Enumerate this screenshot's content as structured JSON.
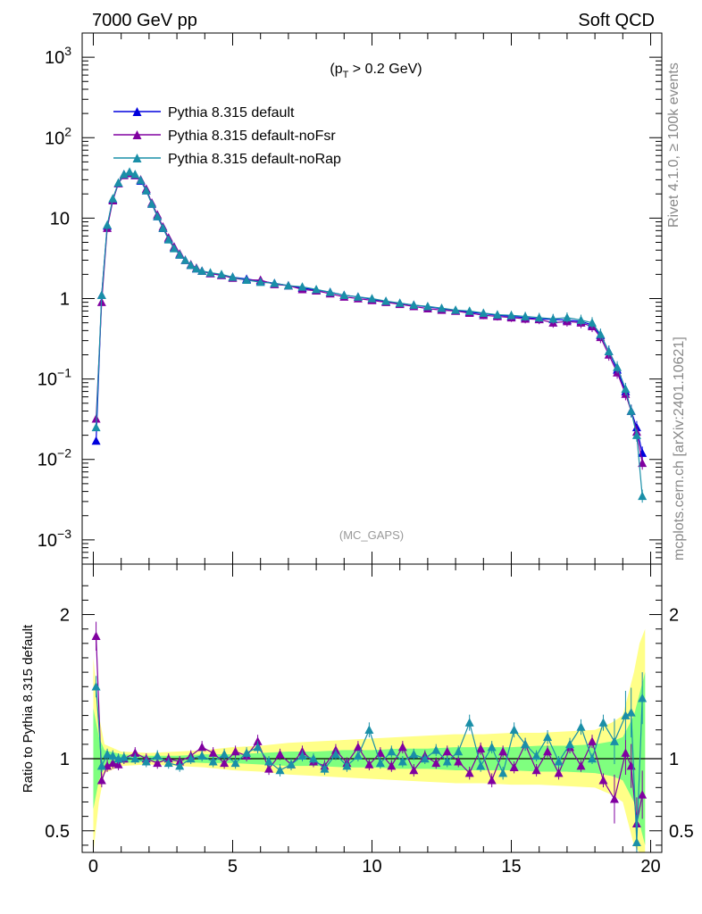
{
  "header": {
    "left": "7000 GeV pp",
    "right": "Soft QCD"
  },
  "side_labels": {
    "rivet": "Rivet 4.1.0, ≥ 100k events",
    "mcplots": "mcplots.cern.ch [arXiv:2401.10621]"
  },
  "chart_data": [
    {
      "type": "line",
      "panel": "main",
      "title": "(p_T > 0.2 GeV)",
      "title_text": "(p",
      "title_sub": "T",
      "title_rest": " > 0.2 GeV)",
      "watermark": "(MC_GAPS)",
      "xlabel": "",
      "ylabel": "",
      "y_scale": "log",
      "xlim": [
        -0.4,
        20.4
      ],
      "ylim": [
        0.0005,
        2000
      ],
      "y_ticks": [
        {
          "value": 1000,
          "label": "10",
          "exp": "3"
        },
        {
          "value": 100,
          "label": "10",
          "exp": "2"
        },
        {
          "value": 10,
          "label": "10",
          "exp": ""
        },
        {
          "value": 1,
          "label": "1",
          "exp": ""
        },
        {
          "value": 0.1,
          "label": "10",
          "exp": "−1"
        },
        {
          "value": 0.01,
          "label": "10",
          "exp": "−2"
        },
        {
          "value": 0.001,
          "label": "10",
          "exp": "−3"
        }
      ],
      "legend_position": "top-left",
      "series": [
        {
          "name": "Pythia 8.315 default",
          "color": "#0000dd",
          "x": [
            0.1,
            0.3,
            0.5,
            0.7,
            0.9,
            1.1,
            1.3,
            1.5,
            1.7,
            1.9,
            2.1,
            2.3,
            2.5,
            2.7,
            2.9,
            3.1,
            3.3,
            3.5,
            3.7,
            3.9,
            4.2,
            4.6,
            5.0,
            5.5,
            6.0,
            6.5,
            7.0,
            7.5,
            8.0,
            8.5,
            9.0,
            9.5,
            10.0,
            10.5,
            11.0,
            11.5,
            12.0,
            12.5,
            13.0,
            13.5,
            14.0,
            14.5,
            15.0,
            15.5,
            16.0,
            16.5,
            17.0,
            17.5,
            17.9,
            18.2,
            18.5,
            18.8,
            19.1,
            19.3,
            19.5,
            19.7
          ],
          "y": [
            0.017,
            1.1,
            8.0,
            17.0,
            27.0,
            35.0,
            37.0,
            34.0,
            29.0,
            22.0,
            15.0,
            10.5,
            7.5,
            5.5,
            4.3,
            3.5,
            3.0,
            2.6,
            2.35,
            2.2,
            2.05,
            1.95,
            1.85,
            1.75,
            1.65,
            1.55,
            1.45,
            1.35,
            1.28,
            1.2,
            1.1,
            1.05,
            0.98,
            0.92,
            0.87,
            0.83,
            0.79,
            0.75,
            0.71,
            0.68,
            0.65,
            0.62,
            0.6,
            0.58,
            0.56,
            0.55,
            0.54,
            0.52,
            0.47,
            0.35,
            0.22,
            0.13,
            0.07,
            0.04,
            0.025,
            0.012
          ]
        },
        {
          "name": "Pythia 8.315 default-noFsr",
          "color": "#8000a0",
          "x": [
            0.1,
            0.3,
            0.5,
            0.7,
            0.9,
            1.1,
            1.3,
            1.5,
            1.7,
            1.9,
            2.1,
            2.3,
            2.5,
            2.7,
            2.9,
            3.1,
            3.3,
            3.5,
            3.7,
            3.9,
            4.2,
            4.6,
            5.0,
            5.5,
            6.0,
            6.5,
            7.0,
            7.5,
            8.0,
            8.5,
            9.0,
            9.5,
            10.0,
            10.5,
            11.0,
            11.5,
            12.0,
            12.5,
            13.0,
            13.5,
            14.0,
            14.5,
            15.0,
            15.5,
            16.0,
            16.5,
            17.0,
            17.5,
            17.9,
            18.2,
            18.5,
            18.8,
            19.1,
            19.3,
            19.5,
            19.7
          ],
          "y": [
            0.032,
            0.9,
            7.5,
            16.5,
            27.0,
            34.0,
            36.0,
            34.0,
            30.0,
            23.0,
            15.5,
            11.0,
            7.8,
            5.7,
            4.4,
            3.6,
            3.0,
            2.65,
            2.4,
            2.2,
            2.05,
            1.95,
            1.8,
            1.7,
            1.7,
            1.5,
            1.45,
            1.3,
            1.25,
            1.15,
            1.05,
            1.0,
            0.95,
            0.9,
            0.85,
            0.8,
            0.75,
            0.72,
            0.7,
            0.66,
            0.62,
            0.6,
            0.58,
            0.56,
            0.55,
            0.5,
            0.52,
            0.5,
            0.45,
            0.33,
            0.2,
            0.12,
            0.065,
            0.04,
            0.022,
            0.009
          ]
        },
        {
          "name": "Pythia 8.315 default-noRap",
          "color": "#1a8fa8",
          "x": [
            0.1,
            0.3,
            0.5,
            0.7,
            0.9,
            1.1,
            1.3,
            1.5,
            1.7,
            1.9,
            2.1,
            2.3,
            2.5,
            2.7,
            2.9,
            3.1,
            3.3,
            3.5,
            3.7,
            3.9,
            4.2,
            4.6,
            5.0,
            5.5,
            6.0,
            6.5,
            7.0,
            7.5,
            8.0,
            8.5,
            9.0,
            9.5,
            10.0,
            10.5,
            11.0,
            11.5,
            12.0,
            12.5,
            13.0,
            13.5,
            14.0,
            14.5,
            15.0,
            15.5,
            16.0,
            16.5,
            17.0,
            17.5,
            17.9,
            18.2,
            18.5,
            18.8,
            19.1,
            19.3,
            19.5,
            19.7
          ],
          "y": [
            0.025,
            1.1,
            8.2,
            17.5,
            27.5,
            35.0,
            37.5,
            35.0,
            29.5,
            22.0,
            15.0,
            10.5,
            7.5,
            5.4,
            4.2,
            3.5,
            3.0,
            2.6,
            2.35,
            2.2,
            2.1,
            2.0,
            1.85,
            1.7,
            1.6,
            1.55,
            1.45,
            1.4,
            1.3,
            1.2,
            1.1,
            1.05,
            1.0,
            0.93,
            0.88,
            0.83,
            0.8,
            0.76,
            0.72,
            0.7,
            0.66,
            0.63,
            0.62,
            0.6,
            0.58,
            0.56,
            0.58,
            0.54,
            0.5,
            0.36,
            0.22,
            0.14,
            0.075,
            0.04,
            0.02,
            0.0035
          ]
        }
      ]
    },
    {
      "type": "line",
      "panel": "ratio",
      "ylabel": "Ratio to Pythia 8.315 default",
      "xlabel": "",
      "xlim": [
        -0.4,
        20.4
      ],
      "ylim": [
        0.35,
        2.35
      ],
      "y_ticks": [
        0.5,
        1,
        2
      ],
      "x_ticks": [
        0,
        5,
        10,
        15,
        20
      ],
      "reference_line": 1,
      "band_colors": {
        "inner": "#7fff7f",
        "outer": "#ffff88"
      },
      "band": {
        "x": [
          0.0,
          0.2,
          0.4,
          1.0,
          2.0,
          3.0,
          4.0,
          5.0,
          6.0,
          7.0,
          8.0,
          9.0,
          10.0,
          11.0,
          12.0,
          13.0,
          14.0,
          15.0,
          16.0,
          17.0,
          18.0,
          18.6,
          19.0,
          19.4,
          19.6,
          19.8
        ],
        "inner_half": [
          0.35,
          0.15,
          0.06,
          0.03,
          0.02,
          0.02,
          0.03,
          0.03,
          0.04,
          0.05,
          0.05,
          0.06,
          0.06,
          0.07,
          0.07,
          0.08,
          0.08,
          0.08,
          0.09,
          0.09,
          0.1,
          0.12,
          0.15,
          0.3,
          0.45,
          0.6
        ],
        "outer_half": [
          0.7,
          0.3,
          0.1,
          0.05,
          0.04,
          0.05,
          0.06,
          0.08,
          0.09,
          0.11,
          0.12,
          0.13,
          0.14,
          0.15,
          0.16,
          0.17,
          0.17,
          0.18,
          0.18,
          0.19,
          0.2,
          0.25,
          0.3,
          0.6,
          0.8,
          0.9
        ]
      },
      "series": [
        {
          "name": "Pythia 8.315 default-noFsr",
          "color": "#8000a0",
          "x": [
            0.1,
            0.3,
            0.5,
            0.7,
            0.9,
            1.1,
            1.5,
            1.9,
            2.3,
            2.7,
            3.1,
            3.5,
            3.9,
            4.3,
            4.7,
            5.1,
            5.5,
            5.9,
            6.3,
            6.7,
            7.1,
            7.5,
            7.9,
            8.3,
            8.7,
            9.1,
            9.5,
            9.9,
            10.3,
            10.7,
            11.1,
            11.5,
            11.9,
            12.3,
            12.7,
            13.1,
            13.5,
            13.9,
            14.3,
            14.7,
            15.1,
            15.5,
            15.9,
            16.3,
            16.7,
            17.1,
            17.5,
            17.9,
            18.3,
            18.7,
            19.1,
            19.3,
            19.5,
            19.7
          ],
          "y": [
            1.85,
            0.85,
            0.95,
            0.97,
            0.96,
            1.0,
            1.04,
            1.0,
            0.97,
            1.0,
            0.98,
            1.02,
            1.08,
            1.04,
            0.97,
            1.05,
            1.02,
            1.12,
            0.93,
            1.03,
            0.96,
            1.05,
            0.98,
            0.95,
            1.06,
            0.97,
            1.08,
            0.96,
            1.04,
            0.95,
            1.08,
            0.92,
            1.02,
            0.97,
            1.05,
            0.98,
            0.9,
            1.07,
            0.85,
            1.05,
            0.94,
            1.1,
            0.92,
            1.05,
            0.9,
            1.08,
            0.95,
            1.12,
            0.85,
            0.72,
            1.04,
            0.95,
            0.55,
            0.75
          ]
        },
        {
          "name": "Pythia 8.315 default-noRap",
          "color": "#1a8fa8",
          "x": [
            0.1,
            0.3,
            0.5,
            0.7,
            0.9,
            1.1,
            1.5,
            1.9,
            2.3,
            2.7,
            3.1,
            3.5,
            3.9,
            4.3,
            4.7,
            5.1,
            5.5,
            5.9,
            6.3,
            6.7,
            7.1,
            7.5,
            7.9,
            8.3,
            8.7,
            9.1,
            9.5,
            9.9,
            10.3,
            10.7,
            11.1,
            11.5,
            11.9,
            12.3,
            12.7,
            13.1,
            13.5,
            13.9,
            14.3,
            14.7,
            15.1,
            15.5,
            15.9,
            16.3,
            16.7,
            17.1,
            17.5,
            17.9,
            18.3,
            18.7,
            19.1,
            19.3,
            19.5,
            19.7
          ],
          "y": [
            1.5,
            0.95,
            1.03,
            1.02,
            1.0,
            1.01,
            1.0,
            0.98,
            1.02,
            0.97,
            0.95,
            1.0,
            1.02,
            0.98,
            1.03,
            0.97,
            1.04,
            1.08,
            0.98,
            0.92,
            0.96,
            1.02,
            1.0,
            0.93,
            1.03,
            0.95,
            1.02,
            1.2,
            0.97,
            1.05,
            0.98,
            1.03,
            1.0,
            1.06,
            0.98,
            1.05,
            1.25,
            0.95,
            1.08,
            0.9,
            1.2,
            1.1,
            1.02,
            1.15,
            0.98,
            1.1,
            1.22,
            1.0,
            1.25,
            1.12,
            1.3,
            1.32,
            0.42,
            1.42
          ]
        }
      ]
    }
  ]
}
